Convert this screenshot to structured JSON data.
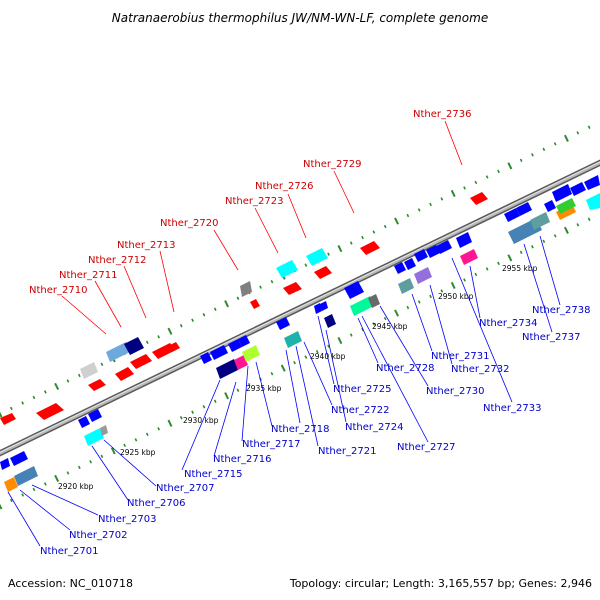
{
  "title": "Natranaerobius thermophilus JW/NM-WN-LF, complete genome",
  "accession": "Accession: NC_010718",
  "topology": "Topology: circular; Length: 3,165,557 bp; Genes: 2,946",
  "colors": {
    "forward_label": "#cc0000",
    "reverse_label": "#0000cc",
    "backbone": "#8c8c8c",
    "ticks": "#2e8b2e"
  },
  "ticks": [
    "2920 kbp",
    "2925 kbp",
    "2930 kbp",
    "2935 kbp",
    "2940 kbp",
    "2945 kbp",
    "2950 kbp",
    "2955 kbp"
  ],
  "forward_labels": [
    "Nther_2710",
    "Nther_2711",
    "Nther_2712",
    "Nther_2713",
    "Nther_2720",
    "Nther_2723",
    "Nther_2726",
    "Nther_2729",
    "Nther_2736"
  ],
  "reverse_labels": [
    "Nther_2701",
    "Nther_2702",
    "Nther_2703",
    "Nther_2706",
    "Nther_2707",
    "Nther_2715",
    "Nther_2716",
    "Nther_2717",
    "Nther_2718",
    "Nther_2721",
    "Nther_2722",
    "Nther_2724",
    "Nther_2725",
    "Nther_2727",
    "Nther_2728",
    "Nther_2730",
    "Nther_2731",
    "Nther_2732",
    "Nther_2733",
    "Nther_2734",
    "Nther_2737",
    "Nther_2738"
  ]
}
